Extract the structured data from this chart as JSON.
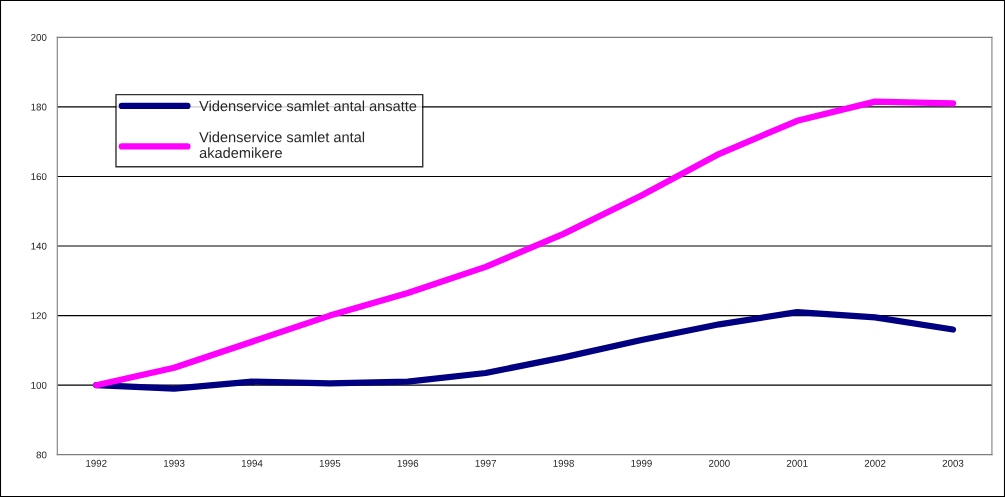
{
  "chart_data": {
    "type": "line",
    "categories": [
      "1992",
      "1993",
      "1994",
      "1995",
      "1996",
      "1997",
      "1998",
      "1999",
      "2000",
      "2001",
      "2002",
      "2003"
    ],
    "series": [
      {
        "name": "Videnservice samlet antal ansatte",
        "color": "#000080",
        "values": [
          100,
          99,
          101,
          100.5,
          101,
          103.5,
          108,
          113,
          117.5,
          121,
          119.5,
          116
        ]
      },
      {
        "name": "Videnservice samlet antal\nakademikere",
        "color": "#ff00ff",
        "values": [
          100,
          105,
          112.5,
          120,
          126.5,
          134,
          143.5,
          154.5,
          166.5,
          176,
          181.5,
          181
        ]
      }
    ],
    "ylim": [
      80,
      200
    ],
    "yticks": [
      80,
      100,
      120,
      140,
      160,
      180,
      200
    ],
    "grid": "y",
    "legend": "top left",
    "marker": "none",
    "line_style": "solid"
  }
}
